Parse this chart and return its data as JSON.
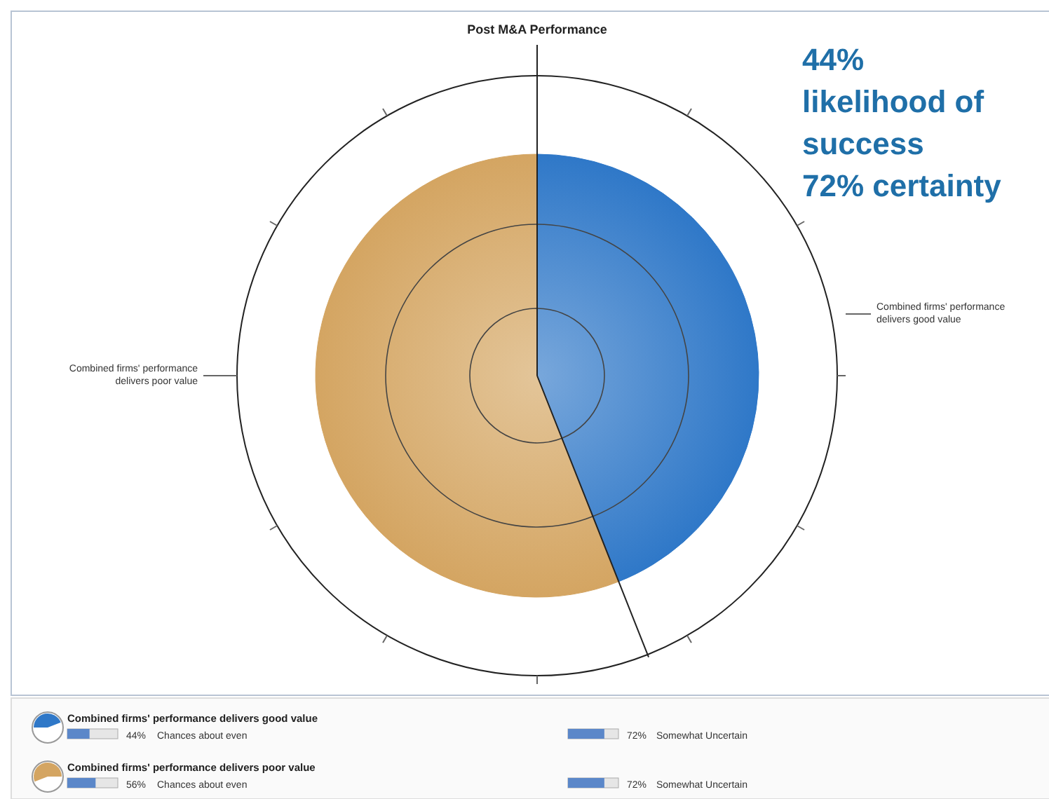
{
  "chart_data": {
    "type": "pie",
    "title": "Post M&A Performance",
    "categories": [
      "Combined firms' performance delivers good value",
      "Combined firms' performance delivers poor value"
    ],
    "values": [
      44,
      56
    ],
    "legend": "bottom",
    "colors": [
      "#2f78c8",
      "#d4a562"
    ],
    "annotations": [
      "44%\nlikelihood of\nsuccess\n72% certainty",
      "44%",
      "Chances about even",
      "72%",
      "Somewhat Uncertain",
      "56%",
      "Chances about even",
      "72%",
      "Somewhat Uncertain"
    ]
  }
}
